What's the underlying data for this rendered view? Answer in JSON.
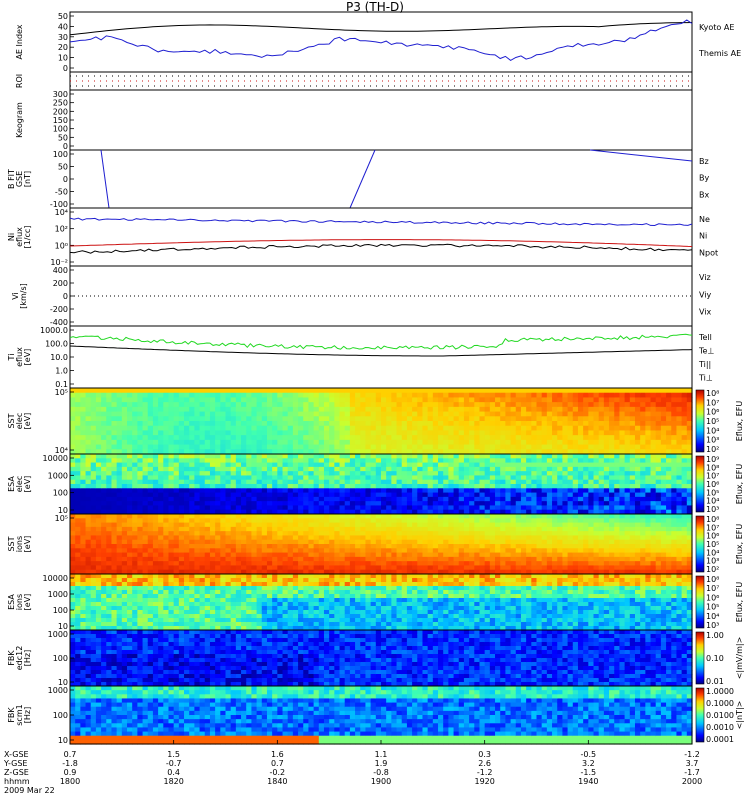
{
  "title": "P3 (TH-D)",
  "date": "2009 Mar 22",
  "colors": {
    "black": "#000000",
    "blue": "#1f1fd0",
    "red": "#cc1010",
    "green": "#22d822"
  },
  "chart_data": [
    {
      "type": "line",
      "panel": "ae",
      "ylabel": "AE Index",
      "ylim": [
        0,
        50
      ],
      "yticks": [
        "50",
        "40",
        "30",
        "20",
        "10",
        "0"
      ],
      "legend": [
        "Kyoto AE",
        "Themis AE"
      ],
      "series": [
        {
          "name": "Kyoto AE",
          "color": "#1f1fd0"
        },
        {
          "name": "Themis AE",
          "color": "#000000"
        }
      ]
    },
    {
      "type": "line",
      "panel": "roi",
      "ylabel": "ROI"
    },
    {
      "type": "line",
      "panel": "keogram",
      "ylabel": "Keogram",
      "yticks": [
        "300",
        "250",
        "200",
        "150",
        "100",
        "50",
        "0"
      ]
    },
    {
      "type": "line",
      "panel": "bfit",
      "ylabel": [
        "B FIT",
        "GSE",
        "[nT]"
      ],
      "ylim": [
        -100,
        100
      ],
      "yticks": [
        "100",
        "50",
        "0",
        "-50",
        "-100"
      ],
      "legend": [
        "Bz",
        "By",
        "Bx"
      ]
    },
    {
      "type": "line",
      "panel": "density",
      "ylabel": [
        "Ni",
        "eflux",
        "[1/cc]"
      ],
      "yticks": [
        "10⁴",
        "10²",
        "10⁰",
        "10⁻²"
      ],
      "legend": [
        "Ne",
        "Ni",
        "Npot"
      ]
    },
    {
      "type": "line",
      "panel": "velocity",
      "ylabel": [
        "Vi",
        "[km/s]"
      ],
      "ylim": [
        -500,
        500
      ],
      "yticks": [
        "400",
        "200",
        "0",
        "-200",
        "-400"
      ],
      "legend": [
        "Viz",
        "Viy",
        "Vix"
      ]
    },
    {
      "type": "line",
      "panel": "temp",
      "ylabel": [
        "Ti",
        "eflux",
        "[eV]"
      ],
      "yticks": [
        "1000.0",
        "100.0",
        "10.0",
        "1.0",
        "0.1"
      ],
      "legend": [
        "Tell",
        "Te⊥",
        "Ti||",
        "Ti⊥"
      ]
    },
    {
      "type": "heatmap",
      "panel": "sst_e",
      "ylabel": [
        "SST",
        "elec",
        "[eV]"
      ],
      "yticks": [
        "10⁵",
        "10⁴"
      ],
      "cbar_label": "Eflux, EFU",
      "cbar_ticks": [
        "10⁸",
        "10⁷",
        "10⁶",
        "10⁵",
        "10⁴",
        "10³",
        "10²"
      ]
    },
    {
      "type": "heatmap",
      "panel": "esa_e",
      "ylabel": [
        "ESA",
        "elec",
        "[eV]"
      ],
      "yticks": [
        "10000",
        "1000",
        "100",
        "10"
      ],
      "cbar_label": "Eflux, EFU",
      "cbar_ticks": [
        "10⁹",
        "10⁸",
        "10⁷",
        "10⁶",
        "10⁵",
        "10⁴",
        "10³"
      ]
    },
    {
      "type": "heatmap",
      "panel": "sst_i",
      "ylabel": [
        "SST",
        "ions",
        "[eV]"
      ],
      "yticks": [
        "10⁵"
      ],
      "cbar_label": "Eflux, EFU",
      "cbar_ticks": [
        "10⁸",
        "10⁷",
        "10⁶",
        "10⁵",
        "10⁴",
        "10³",
        "10²"
      ]
    },
    {
      "type": "heatmap",
      "panel": "esa_i",
      "ylabel": [
        "ESA",
        "ions",
        "[eV]"
      ],
      "yticks": [
        "10000",
        "1000",
        "100",
        "10"
      ],
      "cbar_label": "Eflux, EFU",
      "cbar_ticks": [
        "10⁸",
        "10⁷",
        "10⁶",
        "10⁵",
        "10⁴",
        "10³"
      ]
    },
    {
      "type": "heatmap",
      "panel": "fbk_e12",
      "ylabel": [
        "FBK",
        "edc12",
        "[Hz]"
      ],
      "yticks": [
        "1000",
        "100",
        "10"
      ],
      "cbar_label": "<|mV/m|>",
      "cbar_ticks": [
        "1.00",
        "0.10",
        "0.01"
      ]
    },
    {
      "type": "heatmap",
      "panel": "fbk_scm",
      "ylabel": [
        "FBK",
        "scm1",
        "[Hz]"
      ],
      "yticks": [
        "1000",
        "100",
        "10"
      ],
      "cbar_label": "<|nT|>",
      "cbar_ticks": [
        "1.0000",
        "0.1000",
        "0.0100",
        "0.0010",
        "0.0001"
      ]
    }
  ],
  "xaxis": {
    "row_labels": [
      "X-GSE",
      "Y-GSE",
      "Z-GSE",
      "hhmm"
    ],
    "ticks": [
      {
        "x": "0.7",
        "y": "-1.8",
        "z": "0.9",
        "hhmm": "1800"
      },
      {
        "x": "1.5",
        "y": "-0.7",
        "z": "0.4",
        "hhmm": "1820"
      },
      {
        "x": "1.6",
        "y": "0.7",
        "z": "-0.2",
        "hhmm": "1840"
      },
      {
        "x": "1.1",
        "y": "1.9",
        "z": "-0.8",
        "hhmm": "1900"
      },
      {
        "x": "0.3",
        "y": "2.6",
        "z": "-1.2",
        "hhmm": "1920"
      },
      {
        "x": "-0.5",
        "y": "3.2",
        "z": "-1.5",
        "hhmm": "1940"
      },
      {
        "x": "-1.2",
        "y": "3.7",
        "z": "-1.7",
        "hhmm": "2000"
      }
    ]
  }
}
